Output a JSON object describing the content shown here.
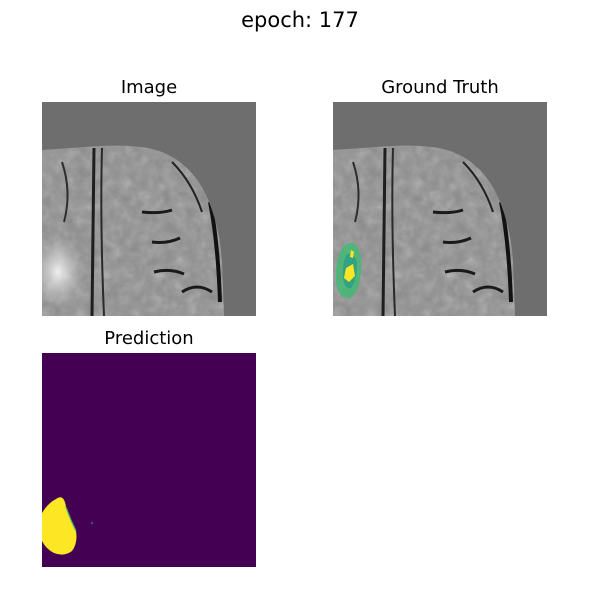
{
  "figure": {
    "suptitle": "epoch: 177"
  },
  "panels": [
    {
      "title": "Image",
      "kind": "mri-slice",
      "colormap": "gray"
    },
    {
      "title": "Ground Truth",
      "kind": "mri-slice-with-mask-overlay",
      "colormap": "viridis"
    },
    {
      "title": "Prediction",
      "kind": "predicted-mask",
      "colormap": "viridis"
    }
  ],
  "colors": {
    "background_gray": "#6e6e6e",
    "brain_gray": "#8a8a8a",
    "viridis_low": "#440154",
    "viridis_mid": "#3fbc73",
    "viridis_high": "#fde725"
  }
}
